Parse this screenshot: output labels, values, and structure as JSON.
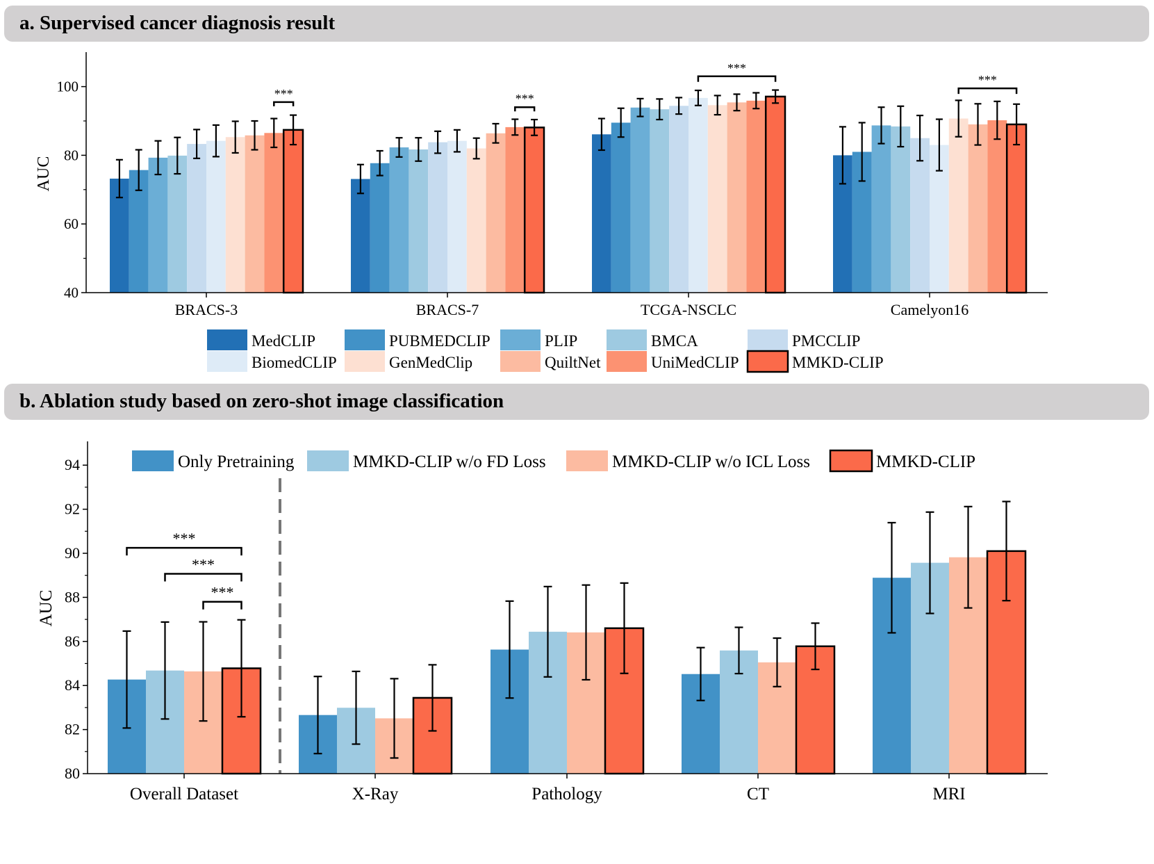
{
  "panel_a": {
    "header": "a. Supervised cancer diagnosis result"
  },
  "panel_b": {
    "header": "b. Ablation study based on zero-shot image classification"
  },
  "chart_data": [
    {
      "type": "bar",
      "title": "a. Supervised cancer diagnosis result",
      "xlabel": "",
      "ylabel": "AUC",
      "ylim": [
        40,
        110
      ],
      "yticks": [
        40,
        60,
        80,
        100
      ],
      "categories": [
        "BRACS-3",
        "BRACS-7",
        "TCGA-NSCLC",
        "Camelyon16"
      ],
      "legend_position": "bottom",
      "series": [
        {
          "name": "MedCLIP",
          "color": "#2270b5",
          "values": [
            73.2,
            73.1,
            86.1,
            80.0
          ],
          "errors": [
            5.5,
            4.2,
            4.6,
            8.3
          ]
        },
        {
          "name": "PUBMEDCLIP",
          "color": "#4292c7",
          "values": [
            75.7,
            77.7,
            89.5,
            81.0
          ],
          "errors": [
            5.9,
            3.6,
            4.2,
            8.5
          ]
        },
        {
          "name": "PLIP",
          "color": "#6baed6",
          "values": [
            79.3,
            82.3,
            93.9,
            88.7
          ],
          "errors": [
            4.9,
            2.8,
            2.6,
            5.3
          ]
        },
        {
          "name": "BMCA",
          "color": "#9ecae1",
          "values": [
            79.9,
            81.7,
            93.4,
            88.4
          ],
          "errors": [
            5.3,
            3.4,
            3.0,
            5.9
          ]
        },
        {
          "name": "PMCCLIP",
          "color": "#c6dbef",
          "values": [
            83.3,
            83.8,
            94.4,
            85.0
          ],
          "errors": [
            4.2,
            3.2,
            2.4,
            6.6
          ]
        },
        {
          "name": "BiomedCLIP",
          "color": "#deebf7",
          "values": [
            84.2,
            84.2,
            96.7,
            83.0
          ],
          "errors": [
            4.6,
            3.2,
            2.2,
            7.5
          ]
        },
        {
          "name": "GenMedClip",
          "color": "#fde0d2",
          "values": [
            85.3,
            82.0,
            94.6,
            90.7
          ],
          "errors": [
            4.6,
            3.0,
            2.8,
            5.3
          ]
        },
        {
          "name": "QuiltNet",
          "color": "#fcbba1",
          "values": [
            85.8,
            86.4,
            95.4,
            89.0
          ],
          "errors": [
            4.2,
            2.8,
            2.4,
            6.0
          ]
        },
        {
          "name": "UniMedCLIP",
          "color": "#fc9272",
          "values": [
            86.5,
            88.2,
            95.9,
            90.2
          ],
          "errors": [
            4.2,
            2.3,
            2.3,
            5.5
          ]
        },
        {
          "name": "MMKD-CLIP",
          "color": "#fb6a4a",
          "values": [
            87.4,
            88.1,
            97.1,
            89.0
          ],
          "errors": [
            4.3,
            2.3,
            1.9,
            5.9
          ]
        }
      ],
      "annotations": [
        "***",
        "***",
        "***",
        "***"
      ]
    },
    {
      "type": "bar",
      "title": "b. Ablation study based on zero-shot image classification",
      "xlabel": "",
      "ylabel": "AUC",
      "ylim": [
        80,
        95
      ],
      "yticks": [
        80,
        82,
        84,
        86,
        88,
        90,
        92,
        94
      ],
      "categories": [
        "Overall Dataset",
        "X-Ray",
        "Pathology",
        "CT",
        "MRI"
      ],
      "legend_position": "top",
      "series": [
        {
          "name": "Only Pretraining",
          "color": "#4292c7",
          "values": [
            84.27,
            82.66,
            85.63,
            84.52,
            88.89
          ],
          "errors": [
            2.2,
            1.75,
            2.2,
            1.2,
            2.5
          ]
        },
        {
          "name": "MMKD-CLIP w/o FD Loss",
          "color": "#9ecae1",
          "values": [
            84.68,
            82.99,
            86.44,
            85.59,
            89.57
          ],
          "errors": [
            2.2,
            1.65,
            2.05,
            1.05,
            2.3
          ]
        },
        {
          "name": "MMKD-CLIP w/o ICL Loss",
          "color": "#fcbba1",
          "values": [
            84.64,
            82.51,
            86.41,
            85.05,
            89.82
          ],
          "errors": [
            2.25,
            1.8,
            2.15,
            1.1,
            2.3
          ]
        },
        {
          "name": "MMKD-CLIP",
          "color": "#fb6a4a",
          "values": [
            84.78,
            83.44,
            86.6,
            85.78,
            90.1
          ],
          "errors": [
            2.2,
            1.5,
            2.05,
            1.05,
            2.25
          ]
        }
      ],
      "annotations": [
        "***",
        "***",
        "***"
      ]
    }
  ]
}
